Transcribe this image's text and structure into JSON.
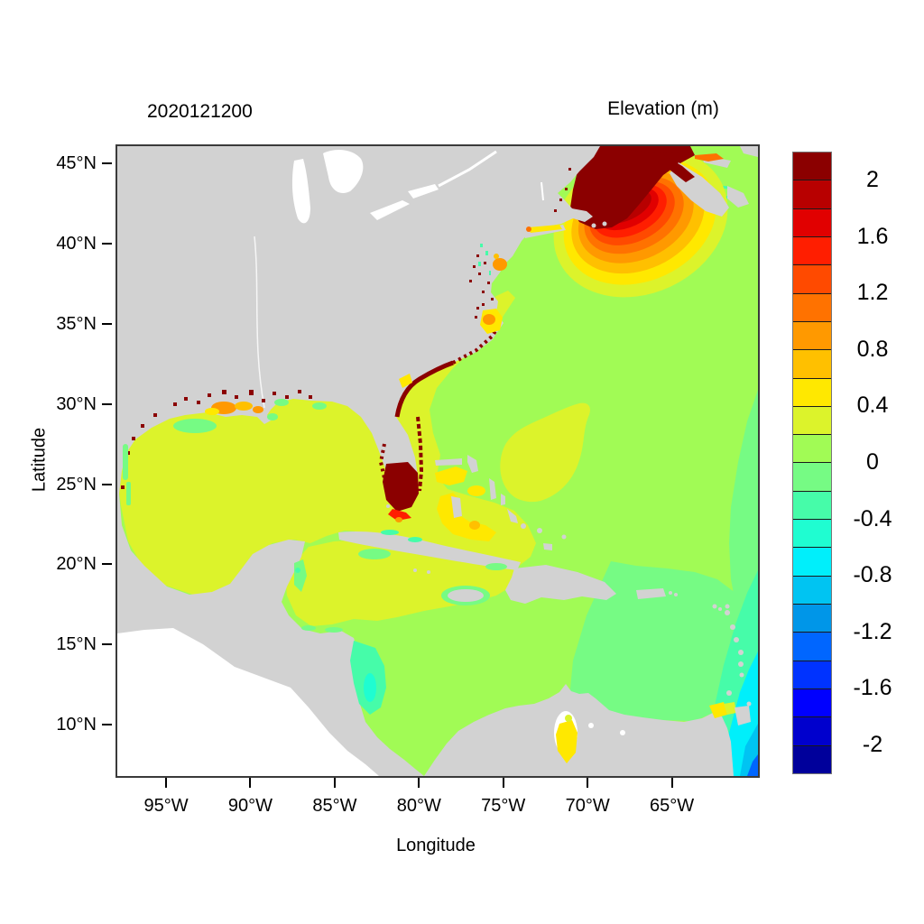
{
  "figure": {
    "timestamp_title": "2020121200",
    "colorbar_title": "Elevation (m)"
  },
  "axes": {
    "x_label": "Longitude",
    "y_label": "Latitude",
    "x_ticks": [
      {
        "value": -95,
        "label": "95°W"
      },
      {
        "value": -90,
        "label": "90°W"
      },
      {
        "value": -85,
        "label": "85°W"
      },
      {
        "value": -80,
        "label": "80°W"
      },
      {
        "value": -75,
        "label": "75°W"
      },
      {
        "value": -70,
        "label": "70°W"
      },
      {
        "value": -65,
        "label": "65°W"
      }
    ],
    "y_ticks": [
      {
        "value": 45,
        "label": "45°N"
      },
      {
        "value": 40,
        "label": "40°N"
      },
      {
        "value": 35,
        "label": "35°N"
      },
      {
        "value": 30,
        "label": "30°N"
      },
      {
        "value": 25,
        "label": "25°N"
      },
      {
        "value": 20,
        "label": "20°N"
      },
      {
        "value": 15,
        "label": "15°N"
      },
      {
        "value": 10,
        "label": "10°N"
      }
    ]
  },
  "colorbar": {
    "tick_labels": [
      "2",
      "1.6",
      "1.2",
      "0.8",
      "0.4",
      "0",
      "-0.4",
      "-0.8",
      "-1.2",
      "-1.6",
      "-2"
    ],
    "vmin": -2.2,
    "vmax": 2.2,
    "step": 0.2,
    "cell_colors_top_to_bottom": [
      "#8B0000",
      "#B80000",
      "#E10000",
      "#FF1E00",
      "#FF4A00",
      "#FF7200",
      "#FF9900",
      "#FFC000",
      "#FFE800",
      "#DCF32B",
      "#A1FB55",
      "#76FB84",
      "#46FCA9",
      "#1FFDD1",
      "#00EFFB",
      "#00C4F2",
      "#0096E8",
      "#0066FF",
      "#0033FF",
      "#0000FF",
      "#0000CD",
      "#00009B"
    ]
  },
  "chart_data": {
    "type": "heatmap",
    "title": "Elevation (m)",
    "timestamp": "2020121200",
    "xlabel": "Longitude",
    "ylabel": "Latitude",
    "xlim": [
      -98,
      -60
    ],
    "ylim": [
      6.9,
      46.2
    ],
    "x_tick_values": [
      -95,
      -90,
      -85,
      -80,
      -75,
      -70,
      -65
    ],
    "y_tick_values": [
      45,
      40,
      35,
      30,
      25,
      20,
      15,
      10
    ],
    "grid": false,
    "legend_position": "right",
    "land_color": "#d2d2d2",
    "no_data_color": "#ffffff",
    "color_levels": {
      "min": -2.2,
      "max": 2.2,
      "step": 0.2
    },
    "regions": [
      {
        "name": "open Atlantic Ocean",
        "approx_value_m": 0.1,
        "color": "#A1FB55"
      },
      {
        "name": "Gulf of Mexico basin",
        "approx_value_m": 0.3,
        "color": "#DCF32B"
      },
      {
        "name": "US southeast shelf band (Florida to Cape Hatteras)",
        "approx_value_m": 0.3,
        "color": "#DCF32B"
      },
      {
        "name": "Atlantic patch near 75W 27N",
        "approx_value_m": 0.3,
        "color": "#DCF32B"
      },
      {
        "name": "Gulf of Maine / Bay of Fundy surge core",
        "approx_value_m": 2.2,
        "color": "#8B0000"
      },
      {
        "name": "Gulf of Maine concentric rings",
        "approx_value_m": 1.8,
        "color": "#E10000"
      },
      {
        "name": "Gulf of Maine outer rings",
        "approx_value_m": 0.6,
        "color": "#FFE800"
      },
      {
        "name": "South Florida / Florida Bay",
        "approx_value_m": 2.2,
        "color": "#8B0000"
      },
      {
        "name": "Bahama Banks shallow areas",
        "approx_value_m": 0.5,
        "color": "#FFE800"
      },
      {
        "name": "Pamlico Sound NC",
        "approx_value_m": 0.9,
        "color": "#FF9900"
      },
      {
        "name": "Delaware Bay area",
        "approx_value_m": 0.9,
        "color": "#FF9900"
      },
      {
        "name": "Long Island Sound",
        "approx_value_m": 0.5,
        "color": "#FFE800"
      },
      {
        "name": "Louisiana coast patches",
        "approx_value_m": 0.8,
        "color": "#FF9900"
      },
      {
        "name": "flooded coastal cells (Texas to Maine, St. Lawrence)",
        "approx_value_m": 2.2,
        "color": "#8B0000"
      },
      {
        "name": "northwest Caribbean",
        "approx_value_m": 0.3,
        "color": "#DCF32B"
      },
      {
        "name": "eastern Caribbean basin",
        "approx_value_m": -0.1,
        "color": "#76FB84"
      },
      {
        "name": "Nicaragua coast",
        "approx_value_m": -0.3,
        "color": "#46FCA9"
      },
      {
        "name": "east of Lesser Antilles",
        "approx_value_m": -0.5,
        "color": "#1FFDD1"
      },
      {
        "name": "near Trinidad / SE corner",
        "approx_value_m": -0.9,
        "color": "#00C4F2"
      },
      {
        "name": "Lake Maracaibo",
        "approx_value_m": 0.5,
        "color": "#FFE800"
      },
      {
        "name": "Great Lakes / Pacific Ocean",
        "approx_value_m": null,
        "color": "#ffffff"
      }
    ]
  }
}
